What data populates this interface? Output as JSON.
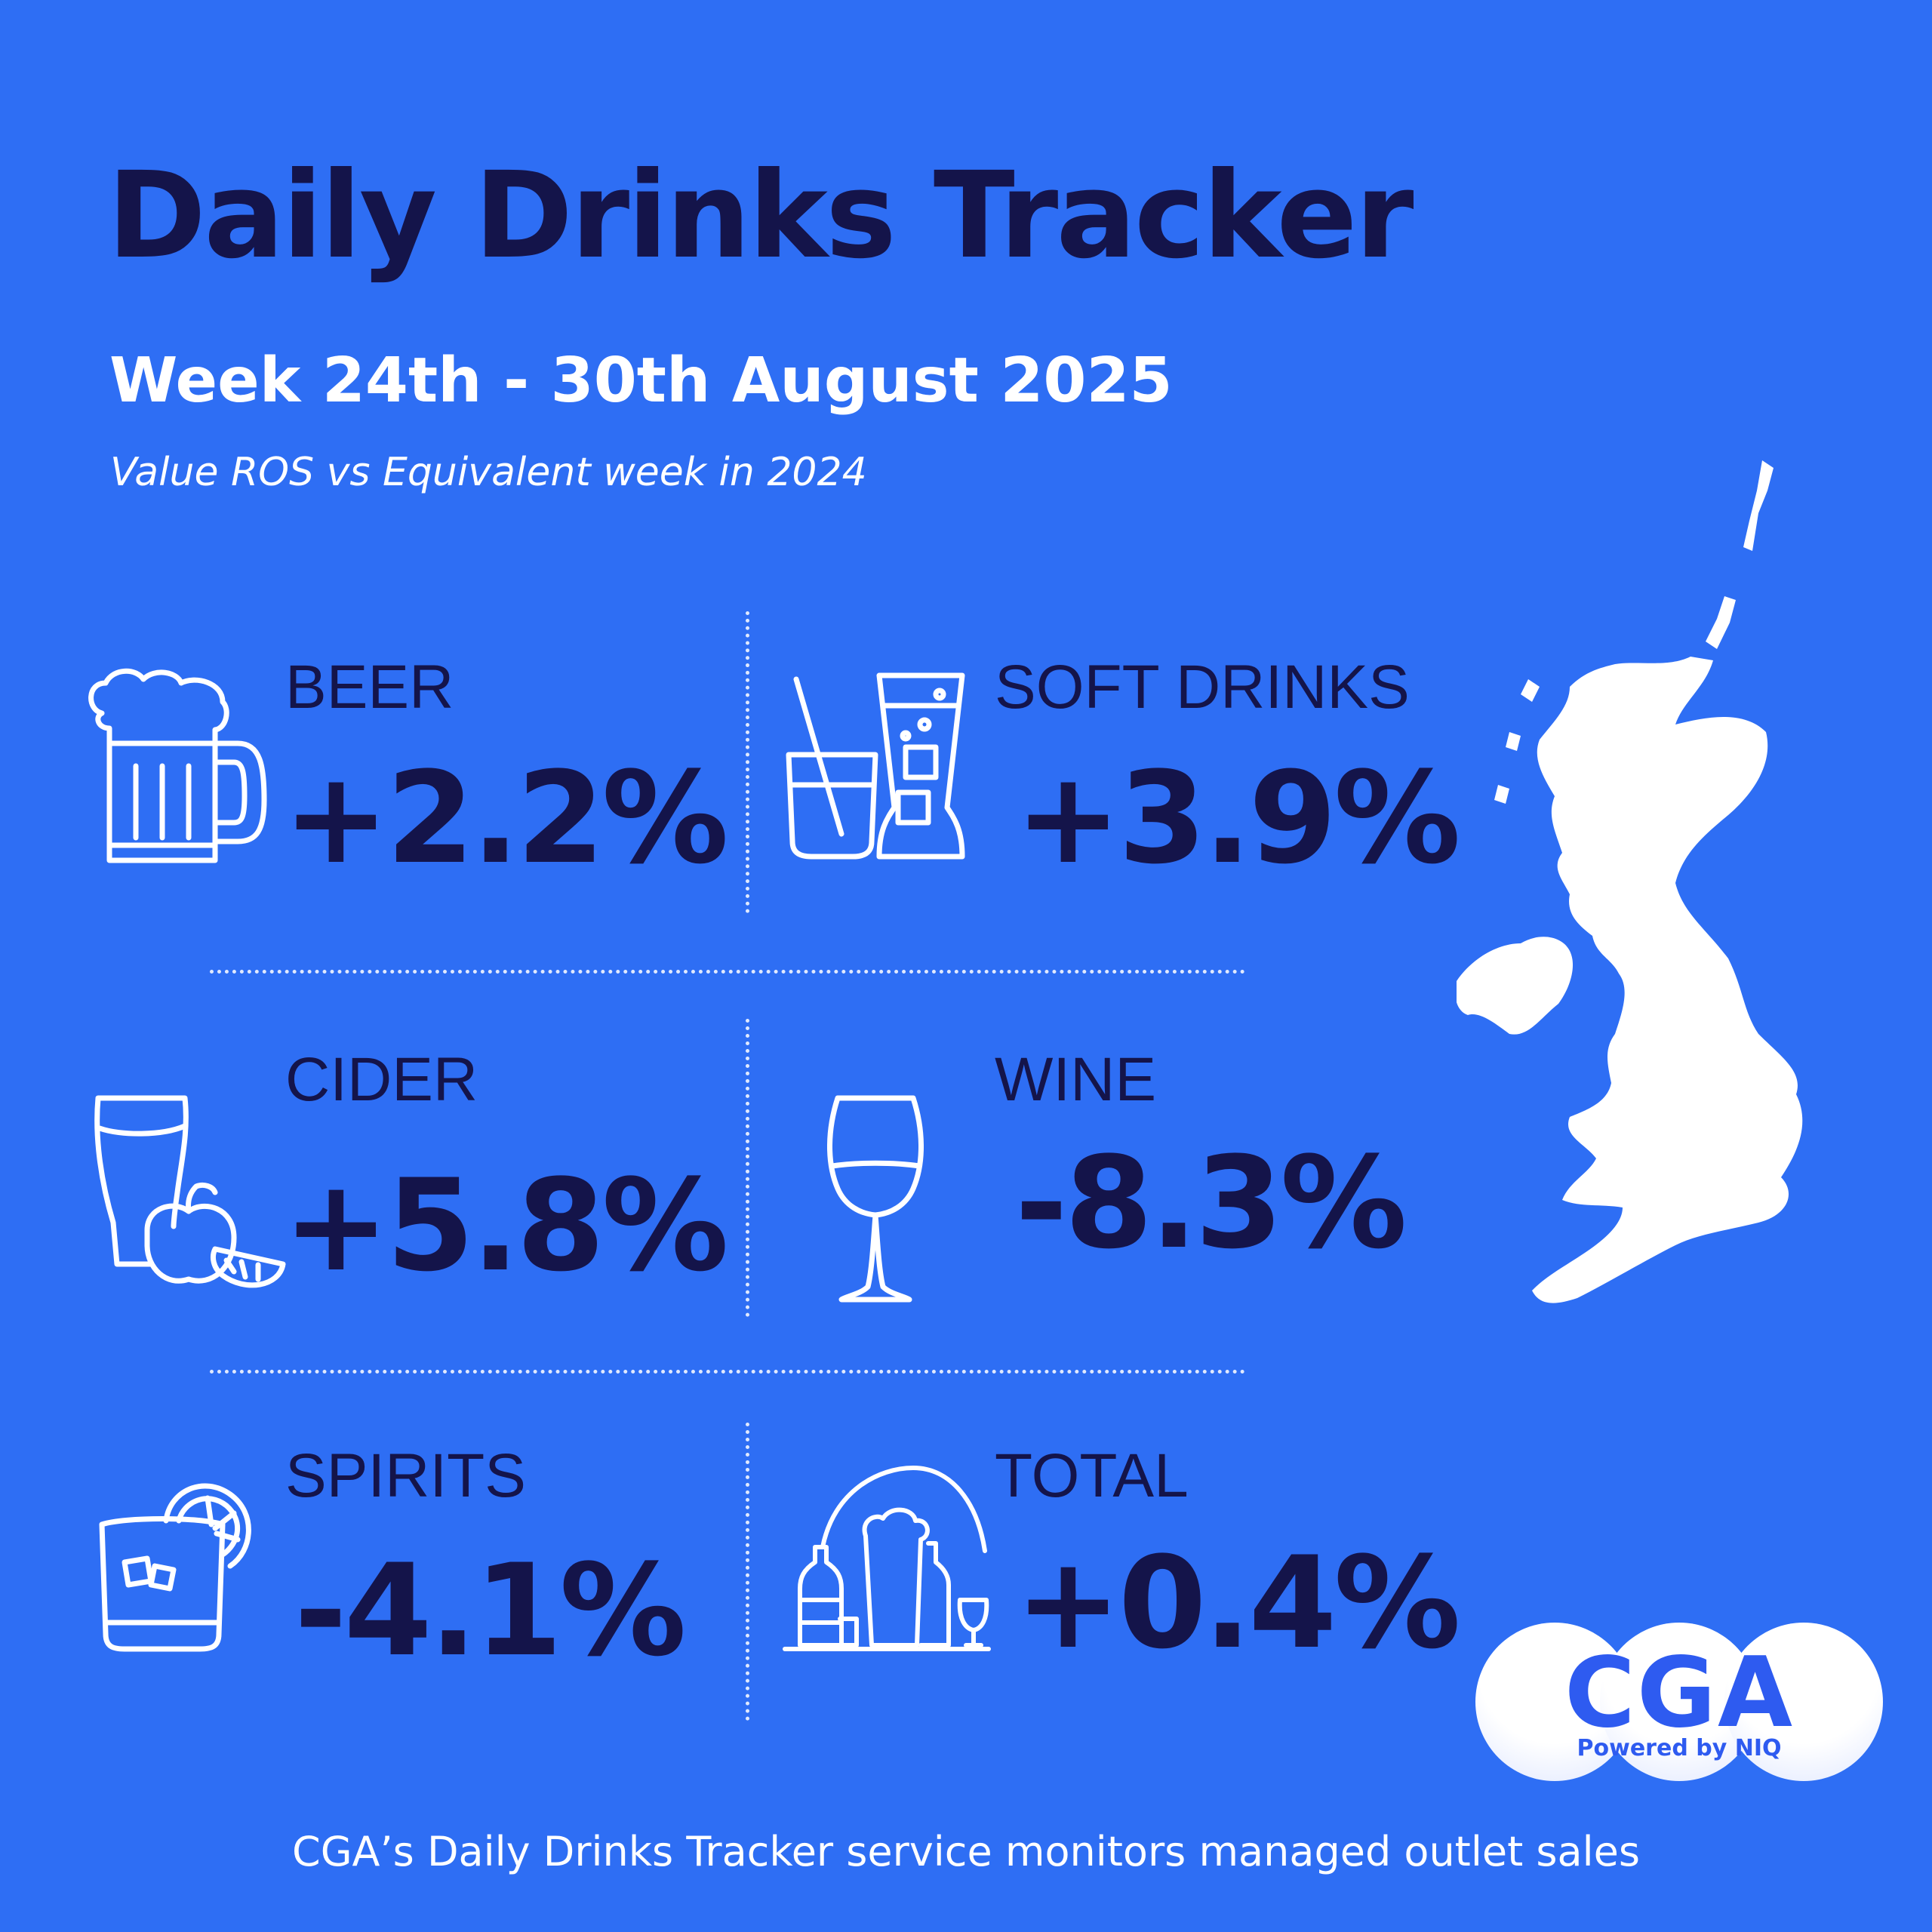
{
  "header": {
    "title": "Daily Drinks Tracker",
    "subtitle": "Week 24th - 30th August 2025",
    "note": "Value ROS vs Equivalent week in 2024"
  },
  "categories": [
    {
      "label": "BEER",
      "value": "+2.2%",
      "icon": "beer-mug-icon"
    },
    {
      "label": "SOFT DRINKS",
      "value": "+3.9%",
      "icon": "soft-drinks-icon"
    },
    {
      "label": "CIDER",
      "value": "+5.8%",
      "icon": "cider-icon"
    },
    {
      "label": "WINE",
      "value": "-8.3%",
      "icon": "wine-glass-icon"
    },
    {
      "label": "SPIRITS",
      "value": "-4.1%",
      "icon": "spirits-glass-icon"
    },
    {
      "label": "TOTAL",
      "value": "+0.4%",
      "icon": "all-drinks-icon"
    }
  ],
  "logo": {
    "text": "CGA",
    "tagline": "Powered by NIQ"
  },
  "footer": {
    "text": "CGA’s Daily Drinks Tracker service monitors managed outlet sales"
  },
  "colors": {
    "background": "#2E6EF4",
    "dark_text": "#14144A",
    "white": "#FFFFFF",
    "logo_blue": "#2E5BF0"
  }
}
